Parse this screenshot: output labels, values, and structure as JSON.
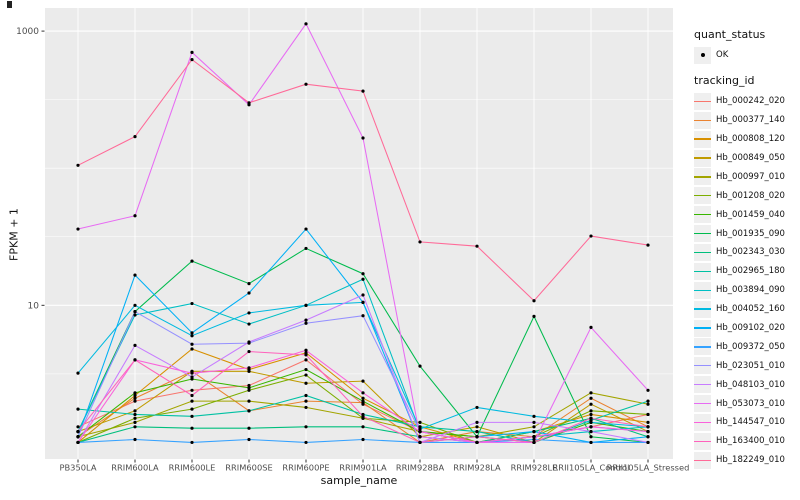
{
  "figure": {
    "background": "#ffffff",
    "panel_background": "#ebebeb",
    "gridline_color": "#ffffff",
    "axis_text_color": "#4d4d4d",
    "tick_mark_color": "#333333",
    "marker_color": "#000000"
  },
  "axes": {
    "x_title": "sample_name",
    "y_title": "FPKM + 1",
    "y_ticks": [
      {
        "value": 1000,
        "label": "1000"
      },
      {
        "value": 10,
        "label": "10"
      }
    ]
  },
  "legend": {
    "quant_status": {
      "title": "quant_status",
      "items": [
        {
          "label": "OK",
          "marker": "point"
        }
      ]
    },
    "tracking_id": {
      "title": "tracking_id"
    }
  },
  "chart_data": {
    "type": "line",
    "title": "",
    "xlabel": "sample_name",
    "ylabel": "FPKM + 1",
    "y_scale": "log10",
    "ylim": [
      0.757,
      1474
    ],
    "grid": true,
    "legend_position": "right",
    "marker": {
      "shape": "point",
      "color": "#000000",
      "legend_label": "OK"
    },
    "y_major_gridlines": [
      10,
      1000
    ],
    "y_minor_gridlines": [
      3.162,
      31.62,
      100,
      316.2
    ],
    "categories": [
      "PB350LA",
      "RRIM600LA",
      "RRIM600LE",
      "RRIM600SE",
      "RRIM600PE",
      "RRIM901LA",
      "RRIM928BA",
      "RRIM928LA",
      "RRIM928LE",
      "RRII105LA_Control",
      "RRII105LA_Stressed"
    ],
    "series": [
      {
        "name": "Hb_000242_020",
        "color": "#F8766D",
        "values": [
          1.3,
          2.0,
          2.4,
          2.6,
          4.0,
          1.9,
          1.2,
          1.0,
          1.1,
          1.3,
          1.6
        ]
      },
      {
        "name": "Hb_000377_140",
        "color": "#EA8331",
        "values": [
          1.1,
          2.1,
          3.3,
          1.7,
          2.0,
          1.95,
          1.0,
          1.2,
          1.1,
          2.1,
          1.3
        ]
      },
      {
        "name": "Hb_000808_120",
        "color": "#D89000",
        "values": [
          1.0,
          2.2,
          4.8,
          3.4,
          4.5,
          2.1,
          1.3,
          1.0,
          1.2,
          1.6,
          1.4
        ]
      },
      {
        "name": "Hb_000849_050",
        "color": "#C09B00",
        "values": [
          1.2,
          1.7,
          3.3,
          3.3,
          2.7,
          2.8,
          1.1,
          1.3,
          1.0,
          1.9,
          1.2
        ]
      },
      {
        "name": "Hb_000997_010",
        "color": "#A3A500",
        "values": [
          1.1,
          1.4,
          2.0,
          2.0,
          1.8,
          1.5,
          1.2,
          1.1,
          1.3,
          2.3,
          1.9
        ]
      },
      {
        "name": "Hb_001208_020",
        "color": "#7CAE00",
        "values": [
          1.0,
          1.5,
          1.75,
          2.4,
          3.1,
          1.5,
          1.4,
          1.0,
          1.1,
          1.7,
          1.6
        ]
      },
      {
        "name": "Hb_001459_040",
        "color": "#39B600",
        "values": [
          1.1,
          2.3,
          2.9,
          2.5,
          3.4,
          2.0,
          1.2,
          1.1,
          1.0,
          1.4,
          1.2
        ]
      },
      {
        "name": "Hb_001935_090",
        "color": "#00BB4E",
        "values": [
          1.2,
          9.0,
          21,
          14.4,
          26,
          17,
          3.6,
          1.1,
          8.3,
          1.1,
          1.0
        ]
      },
      {
        "name": "Hb_002343_030",
        "color": "#00BF7D",
        "values": [
          1.0,
          1.3,
          1.27,
          1.27,
          1.3,
          1.3,
          1.1,
          1.0,
          1.2,
          1.5,
          1.1
        ]
      },
      {
        "name": "Hb_002965_180",
        "color": "#00C1A3",
        "values": [
          1.75,
          1.6,
          1.55,
          1.7,
          2.2,
          1.6,
          1.3,
          1.2,
          1.0,
          1.45,
          2.0
        ]
      },
      {
        "name": "Hb_003894_090",
        "color": "#00BFC4",
        "values": [
          1.2,
          8.5,
          10.3,
          7.3,
          10,
          15.5,
          1.2,
          1.0,
          1.1,
          1.2,
          1.3
        ]
      },
      {
        "name": "Hb_004052_160",
        "color": "#00BAE0",
        "values": [
          3.2,
          10,
          6.0,
          8.8,
          10,
          10.5,
          1.25,
          1.8,
          1.55,
          1.4,
          1.3
        ]
      },
      {
        "name": "Hb_009102_020",
        "color": "#00B0F6",
        "values": [
          1.1,
          16.6,
          6.3,
          12.3,
          36,
          10.5,
          1.0,
          1.1,
          1.2,
          1.0,
          1.1
        ]
      },
      {
        "name": "Hb_009372_050",
        "color": "#35A2FF",
        "values": [
          1.0,
          1.05,
          1.0,
          1.05,
          1.0,
          1.05,
          1.0,
          1.0,
          1.05,
          1.0,
          1.0
        ]
      },
      {
        "name": "Hb_023051_010",
        "color": "#9590FF",
        "values": [
          1.1,
          9.0,
          5.2,
          5.3,
          7.4,
          8.4,
          1.2,
          1.0,
          1.1,
          1.3,
          1.2
        ]
      },
      {
        "name": "Hb_048103_010",
        "color": "#C77CFF",
        "values": [
          1.0,
          5.1,
          3.0,
          5.4,
          7.8,
          11.9,
          1.0,
          1.4,
          1.4,
          1.2,
          1.0
        ]
      },
      {
        "name": "Hb_053073_010",
        "color": "#E76BF3",
        "values": [
          36,
          45,
          700,
          290,
          1130,
          166,
          1.1,
          1.0,
          1.0,
          6.9,
          2.4
        ]
      },
      {
        "name": "Hb_144547_010",
        "color": "#FA62DB",
        "values": [
          1.0,
          4.0,
          3.2,
          3.5,
          4.7,
          2.3,
          1.2,
          1.0,
          1.1,
          1.3,
          1.2
        ]
      },
      {
        "name": "Hb_163400_010",
        "color": "#FF62BC",
        "values": [
          1.2,
          4.0,
          2.2,
          4.6,
          4.35,
          1.55,
          1.0,
          1.1,
          1.0,
          1.5,
          1.3
        ]
      },
      {
        "name": "Hb_182249_010",
        "color": "#FF6A98",
        "values": [
          105,
          170,
          620,
          300,
          410,
          365,
          29,
          27,
          10.8,
          32,
          27.5
        ]
      }
    ]
  }
}
